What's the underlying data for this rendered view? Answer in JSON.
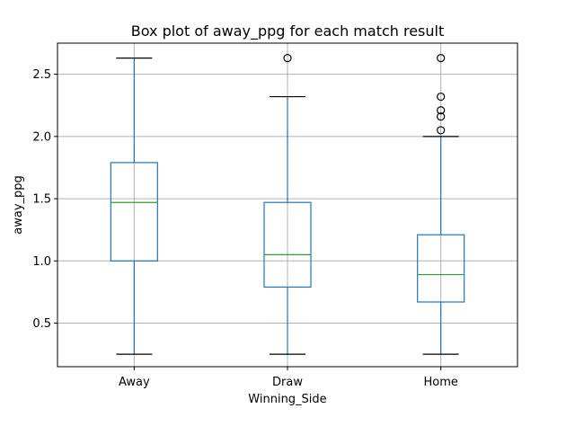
{
  "chart_data": {
    "type": "box",
    "title": "Box plot of away_ppg for each match result",
    "xlabel": "Winning_Side",
    "ylabel": "away_ppg",
    "ylim": [
      0.15,
      2.75
    ],
    "yticks": [
      0.5,
      1.0,
      1.5,
      2.0,
      2.5
    ],
    "ytick_labels": [
      "0.5",
      "1.0",
      "1.5",
      "2.0",
      "2.5"
    ],
    "grid": true,
    "categories": [
      "Away",
      "Draw",
      "Home"
    ],
    "boxes": [
      {
        "whislo": 0.25,
        "q1": 1.0,
        "med": 1.47,
        "q3": 1.79,
        "whishi": 2.63,
        "fliers": []
      },
      {
        "whislo": 0.25,
        "q1": 0.79,
        "med": 1.05,
        "q3": 1.47,
        "whishi": 2.32,
        "fliers": [
          2.63
        ]
      },
      {
        "whislo": 0.25,
        "q1": 0.67,
        "med": 0.89,
        "q3": 1.21,
        "whishi": 2.0,
        "fliers": [
          2.05,
          2.16,
          2.21,
          2.32,
          2.63
        ]
      }
    ],
    "colors": {
      "box": "#1f77b4",
      "median": "#2ca02c",
      "grid": "#b0b0b0",
      "flier": "#000000"
    }
  }
}
